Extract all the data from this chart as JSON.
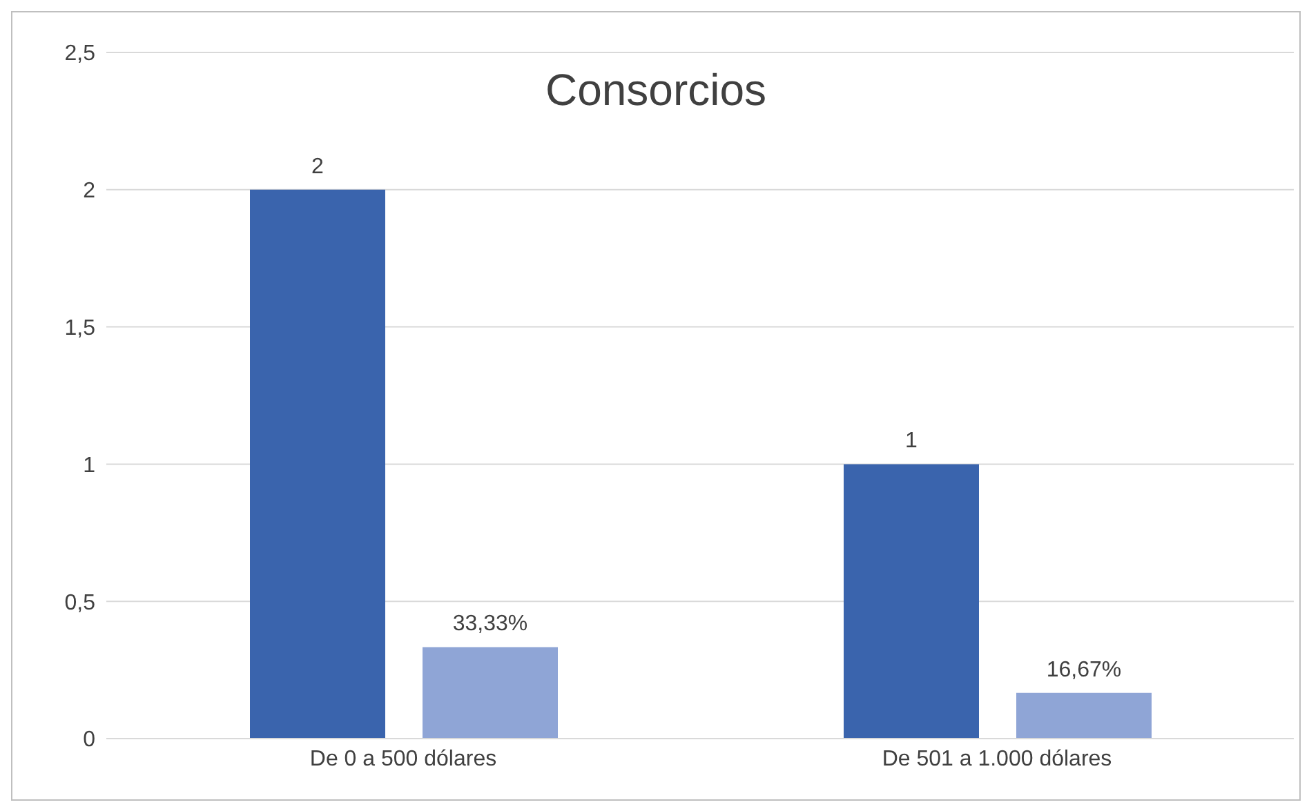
{
  "chart_data": {
    "type": "bar",
    "title": "Consorcios",
    "categories": [
      "De 0 a 500 dólares",
      "De 501 a 1.000 dólares"
    ],
    "series": [
      {
        "color": "#3a64ad",
        "values": [
          2,
          1
        ],
        "value_labels": [
          "2",
          "1"
        ]
      },
      {
        "color": "#8fa5d6",
        "values": [
          0.3333,
          0.1667
        ],
        "value_labels": [
          "33,33%",
          "16,67%"
        ]
      }
    ],
    "ylim": [
      0,
      2.5
    ],
    "yticks": [
      0,
      {
        "value": 0.5,
        "label": "0,5"
      },
      1,
      {
        "value": 1.5,
        "label": "1,5"
      },
      2,
      {
        "value": 2.5,
        "label": "2,5"
      }
    ],
    "grid": "y",
    "legend": false
  }
}
